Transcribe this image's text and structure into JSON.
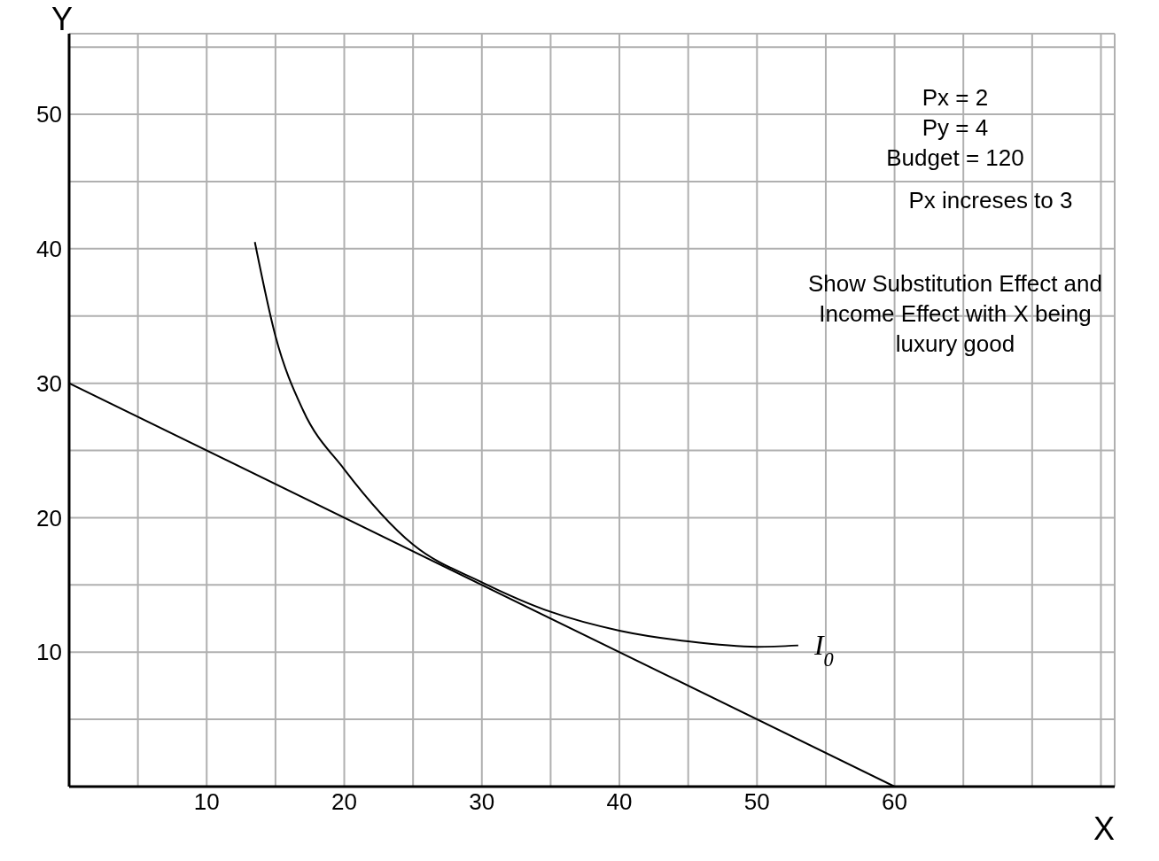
{
  "chart_data": {
    "type": "line",
    "xlabel": "X",
    "ylabel": "Y",
    "xlim": [
      0,
      76
    ],
    "ylim": [
      0,
      56
    ],
    "xticks": [
      {
        "value": 5,
        "label": null
      },
      10,
      {
        "value": 15,
        "label": null
      },
      20,
      {
        "value": 25,
        "label": null
      },
      30,
      {
        "value": 35,
        "label": null
      },
      40,
      {
        "value": 45,
        "label": null
      },
      50,
      {
        "value": 55,
        "label": null
      },
      60,
      {
        "value": 65,
        "label": null
      },
      {
        "value": 70,
        "label": null
      },
      {
        "value": 75,
        "label": null
      }
    ],
    "yticks": [
      {
        "value": 5,
        "label": null
      },
      10,
      {
        "value": 15,
        "label": null
      },
      20,
      {
        "value": 25,
        "label": null
      },
      30,
      {
        "value": 35,
        "label": null
      },
      40,
      {
        "value": 45,
        "label": null
      },
      50,
      {
        "value": 55,
        "label": null
      }
    ],
    "grid": true,
    "marker": "none",
    "line_style": "solid",
    "series": [
      {
        "color": "#000000",
        "x": [
          0,
          60
        ],
        "values": [
          30,
          0
        ]
      },
      {
        "name": "I$_{0}$",
        "color": "#000000",
        "x": [
          13.5,
          15,
          17,
          20,
          25,
          30,
          35,
          40,
          45,
          50,
          53
        ],
        "values": [
          40.5,
          33.5,
          28,
          23.6,
          18,
          15.2,
          13,
          11.6,
          10.8,
          10.4,
          10.5
        ]
      }
    ],
    "annotations": [
      "Px = 2",
      "Py = 4",
      "Budget = 120",
      "Px  increses to 3",
      "Show Substitution Effect and Income Effect with X being luxury good"
    ]
  }
}
